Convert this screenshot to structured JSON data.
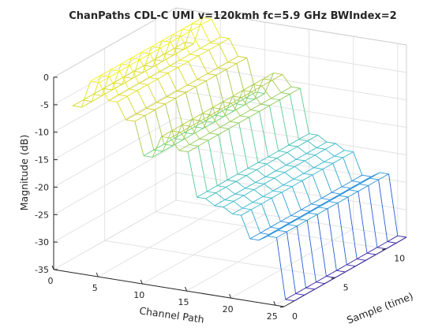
{
  "chart_data": {
    "type": "mesh3d",
    "title": "ChanPaths CDL-C UMI v=120kmh fc=5.9 GHz BWIndex=2",
    "xlabel": "Channel Path",
    "ylabel": "Sample (time)",
    "zlabel": "Magnitude (dB)",
    "xlim": [
      0,
      26
    ],
    "ylim": [
      0,
      12
    ],
    "zlim": [
      -35,
      0
    ],
    "xticks": [
      "0",
      "5",
      "10",
      "15",
      "20",
      "25"
    ],
    "yticks": [
      "0",
      "5",
      "10"
    ],
    "zticks": [
      "0",
      "-5",
      "-10",
      "-15",
      "-20",
      "-25",
      "-30",
      "-35"
    ],
    "grid": "on",
    "colormap": "parula",
    "paths": [
      1,
      2,
      3,
      4,
      5,
      6,
      7,
      8,
      9,
      10,
      11,
      12,
      13,
      14,
      15,
      16,
      17,
      18,
      19,
      20,
      21,
      22,
      23,
      24,
      25,
      26
    ],
    "samples": [
      1,
      2,
      3,
      4,
      5,
      6,
      7,
      8,
      9,
      10,
      11,
      12
    ],
    "magnitude_profile_db": [
      -6,
      -6,
      -1,
      -1,
      -4,
      -4,
      -7,
      -7,
      -13,
      -13,
      -9,
      -9,
      -11,
      -11,
      -19,
      -19,
      -20,
      -20,
      -21,
      -21,
      -25,
      -25,
      -24,
      -24,
      -35,
      -35
    ]
  }
}
